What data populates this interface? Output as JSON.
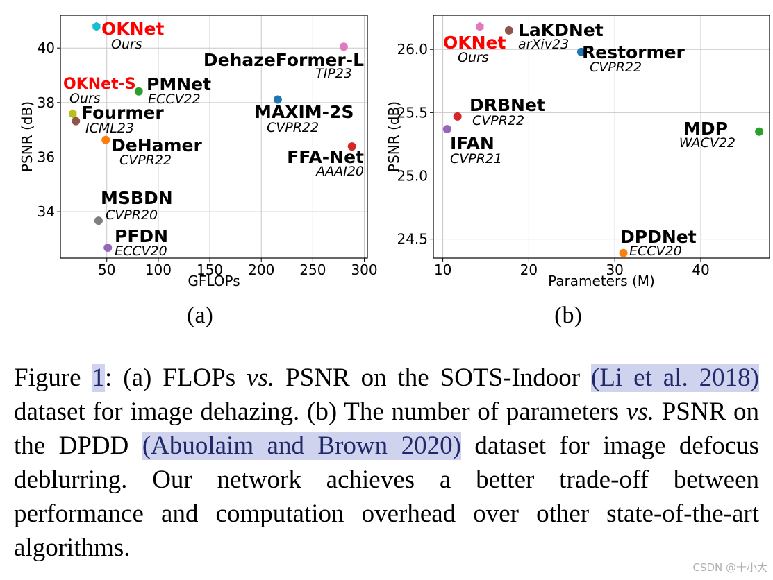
{
  "chart_data": [
    {
      "type": "scatter",
      "id": "a",
      "sublabel": "(a)",
      "xlabel": "GFLOPs",
      "ylabel": "PSNR (dB)",
      "xlim": [
        5,
        303
      ],
      "ylim": [
        32.3,
        41.2
      ],
      "xticks": [
        50,
        100,
        150,
        200,
        250,
        300
      ],
      "yticks": [
        34,
        36,
        38,
        40
      ],
      "grid": true,
      "points": [
        {
          "name": "OKNet",
          "venue": "Ours",
          "x": 40,
          "y": 40.79,
          "color": "#17becf",
          "marker": "hexagon",
          "highlight": true
        },
        {
          "name": "DehazeFormer-L",
          "venue": "TIP23",
          "x": 280,
          "y": 40.05,
          "color": "#e377c2",
          "marker": "circle"
        },
        {
          "name": "OKNet-S",
          "venue": "Ours",
          "x": 17,
          "y": 37.59,
          "color": "#bcbd22",
          "marker": "hexagon",
          "highlight": true
        },
        {
          "name": "PMNet",
          "venue": "ECCV22",
          "x": 81,
          "y": 38.41,
          "color": "#2ca02c",
          "marker": "circle"
        },
        {
          "name": "Fourmer",
          "venue": "ICML23",
          "x": 20,
          "y": 37.32,
          "color": "#8c564b",
          "marker": "circle"
        },
        {
          "name": "MAXIM-2S",
          "venue": "CVPR22",
          "x": 216,
          "y": 38.11,
          "color": "#1f77b4",
          "marker": "circle"
        },
        {
          "name": "DeHamer",
          "venue": "CVPR22",
          "x": 49,
          "y": 36.63,
          "color": "#ff7f0e",
          "marker": "circle"
        },
        {
          "name": "FFA-Net",
          "venue": "AAAI20",
          "x": 288,
          "y": 36.39,
          "color": "#d62728",
          "marker": "circle"
        },
        {
          "name": "MSBDN",
          "venue": "CVPR20",
          "x": 42,
          "y": 33.67,
          "color": "#7f7f7f",
          "marker": "circle"
        },
        {
          "name": "PFDN",
          "venue": "ECCV20",
          "x": 51,
          "y": 32.68,
          "color": "#9467bd",
          "marker": "circle"
        }
      ]
    },
    {
      "type": "scatter",
      "id": "b",
      "sublabel": "(b)",
      "xlabel": "Parameters (M)",
      "ylabel": "PSNR (dB)",
      "xlim": [
        8.9,
        48
      ],
      "ylim": [
        24.35,
        26.27
      ],
      "xticks": [
        10,
        20,
        30,
        40
      ],
      "yticks": [
        24.5,
        25.0,
        25.5,
        26.0
      ],
      "ytick_labels": [
        "24.5",
        "25.0",
        "25.5",
        "26.0"
      ],
      "grid": true,
      "points": [
        {
          "name": "OKNet",
          "venue": "Ours",
          "x": 14.3,
          "y": 26.18,
          "color": "#e377c2",
          "marker": "hexagon",
          "highlight": true
        },
        {
          "name": "LaKDNet",
          "venue": "arXiv23",
          "x": 17.7,
          "y": 26.15,
          "color": "#8c564b",
          "marker": "circle"
        },
        {
          "name": "Restormer",
          "venue": "CVPR22",
          "x": 26.1,
          "y": 25.98,
          "color": "#1f77b4",
          "marker": "circle"
        },
        {
          "name": "DRBNet",
          "venue": "CVPR22",
          "x": 11.7,
          "y": 25.47,
          "color": "#d62728",
          "marker": "circle"
        },
        {
          "name": "IFAN",
          "venue": "CVPR21",
          "x": 10.5,
          "y": 25.37,
          "color": "#9467bd",
          "marker": "circle"
        },
        {
          "name": "MDP",
          "venue": "WACV22",
          "x": 46.8,
          "y": 25.35,
          "color": "#2ca02c",
          "marker": "circle"
        },
        {
          "name": "DPDNet",
          "venue": "ECCV20",
          "x": 31.0,
          "y": 24.39,
          "color": "#ff7f0e",
          "marker": "circle"
        }
      ]
    }
  ],
  "colors": {
    "highlight_label": "#ff0000",
    "grid": "#c8c8c8",
    "citation_background": "#cfd3ee",
    "citation_text": "#202a6a"
  },
  "caption": {
    "label": "Figure ",
    "number": "1",
    "seg1": ": (a) FLOPs ",
    "vs1": "vs.",
    "seg2": " PSNR on the SOTS-Indoor ",
    "cite1": "(Li et al. 2018)",
    "seg3": " dataset for image dehazing. (b) The number of parameters ",
    "vs2": "vs.",
    "seg4": " PSNR on the DPDD ",
    "cite2": "(Abuolaim and Brown 2020)",
    "seg5": " dataset for image defocus deblurring. Our network achieves a better trade-off between performance and computation overhead over other state-of-the-art algorithms."
  },
  "watermark": "CSDN @十小大"
}
